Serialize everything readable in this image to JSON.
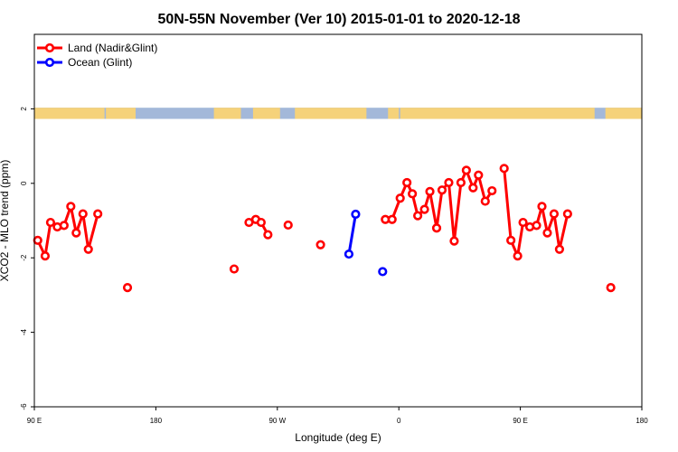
{
  "chart_data": {
    "type": "line",
    "title": "50N-55N November (Ver 10)   2015-01-01 to 2020-12-18",
    "xlabel": "Longitude (deg E)",
    "ylabel": "XCO2 - MLO trend (ppm)",
    "xlim": [
      90,
      540
    ],
    "ylim": [
      -6.0,
      4.0
    ],
    "x_ticks": [
      {
        "value": 90,
        "label": "90 E"
      },
      {
        "value": 180,
        "label": "180"
      },
      {
        "value": 270,
        "label": "90 W"
      },
      {
        "value": 360,
        "label": "0"
      },
      {
        "value": 450,
        "label": "90 E"
      },
      {
        "value": 540,
        "label": "180"
      }
    ],
    "y_ticks": [
      {
        "value": -6,
        "label": "-6"
      },
      {
        "value": -4,
        "label": "-4"
      },
      {
        "value": -2,
        "label": "-2"
      },
      {
        "value": 0,
        "label": "0"
      },
      {
        "value": 2,
        "label": "2"
      }
    ],
    "grid": false,
    "legend_position": "top-left",
    "land_ocean_strip": {
      "y_range": [
        1.73,
        2.03
      ],
      "land_color": "#F5D27A",
      "ocean_color": "#A3B8D9"
    },
    "series": [
      {
        "name": "Land (Nadir&Glint)",
        "color": "#FF0000",
        "segments": [
          [
            [
              92.5,
              -1.53
            ],
            [
              98,
              -1.95
            ],
            [
              102,
              -1.05
            ],
            [
              107,
              -1.17
            ],
            [
              112,
              -1.13
            ],
            [
              117,
              -0.62
            ],
            [
              121,
              -1.33
            ],
            [
              126,
              -0.82
            ],
            [
              130,
              -1.77
            ],
            [
              137,
              -0.82
            ]
          ],
          [
            [
              159,
              -2.8
            ]
          ],
          [
            [
              238,
              -2.3
            ]
          ],
          [
            [
              249,
              -1.05
            ],
            [
              254,
              -0.97
            ],
            [
              258,
              -1.05
            ],
            [
              263,
              -1.38
            ]
          ],
          [
            [
              278,
              -1.12
            ]
          ],
          [
            [
              302,
              -1.65
            ]
          ],
          [
            [
              350,
              -0.97
            ],
            [
              355,
              -0.97
            ],
            [
              361,
              -0.4
            ],
            [
              366,
              0.02
            ],
            [
              370,
              -0.28
            ],
            [
              374,
              -0.87
            ],
            [
              379,
              -0.7
            ],
            [
              383,
              -0.22
            ],
            [
              388,
              -1.2
            ],
            [
              392,
              -0.18
            ],
            [
              397,
              0.02
            ],
            [
              401,
              -1.55
            ],
            [
              406,
              0.02
            ],
            [
              410,
              0.35
            ],
            [
              415,
              -0.12
            ],
            [
              419,
              0.22
            ],
            [
              424,
              -0.48
            ],
            [
              429,
              -0.2
            ]
          ],
          [
            [
              438,
              0.4
            ],
            [
              443,
              -1.53
            ],
            [
              448,
              -1.95
            ],
            [
              452,
              -1.05
            ],
            [
              457,
              -1.17
            ],
            [
              462,
              -1.13
            ],
            [
              466,
              -0.62
            ],
            [
              470,
              -1.33
            ],
            [
              475,
              -0.82
            ],
            [
              479,
              -1.77
            ],
            [
              485,
              -0.82
            ]
          ],
          [
            [
              517,
              -2.8
            ]
          ]
        ]
      },
      {
        "name": "Ocean (Glint)",
        "color": "#0000FF",
        "segments": [
          [
            [
              323,
              -1.9
            ],
            [
              328,
              -0.83
            ]
          ],
          [
            [
              348,
              -2.37
            ]
          ]
        ]
      }
    ]
  }
}
